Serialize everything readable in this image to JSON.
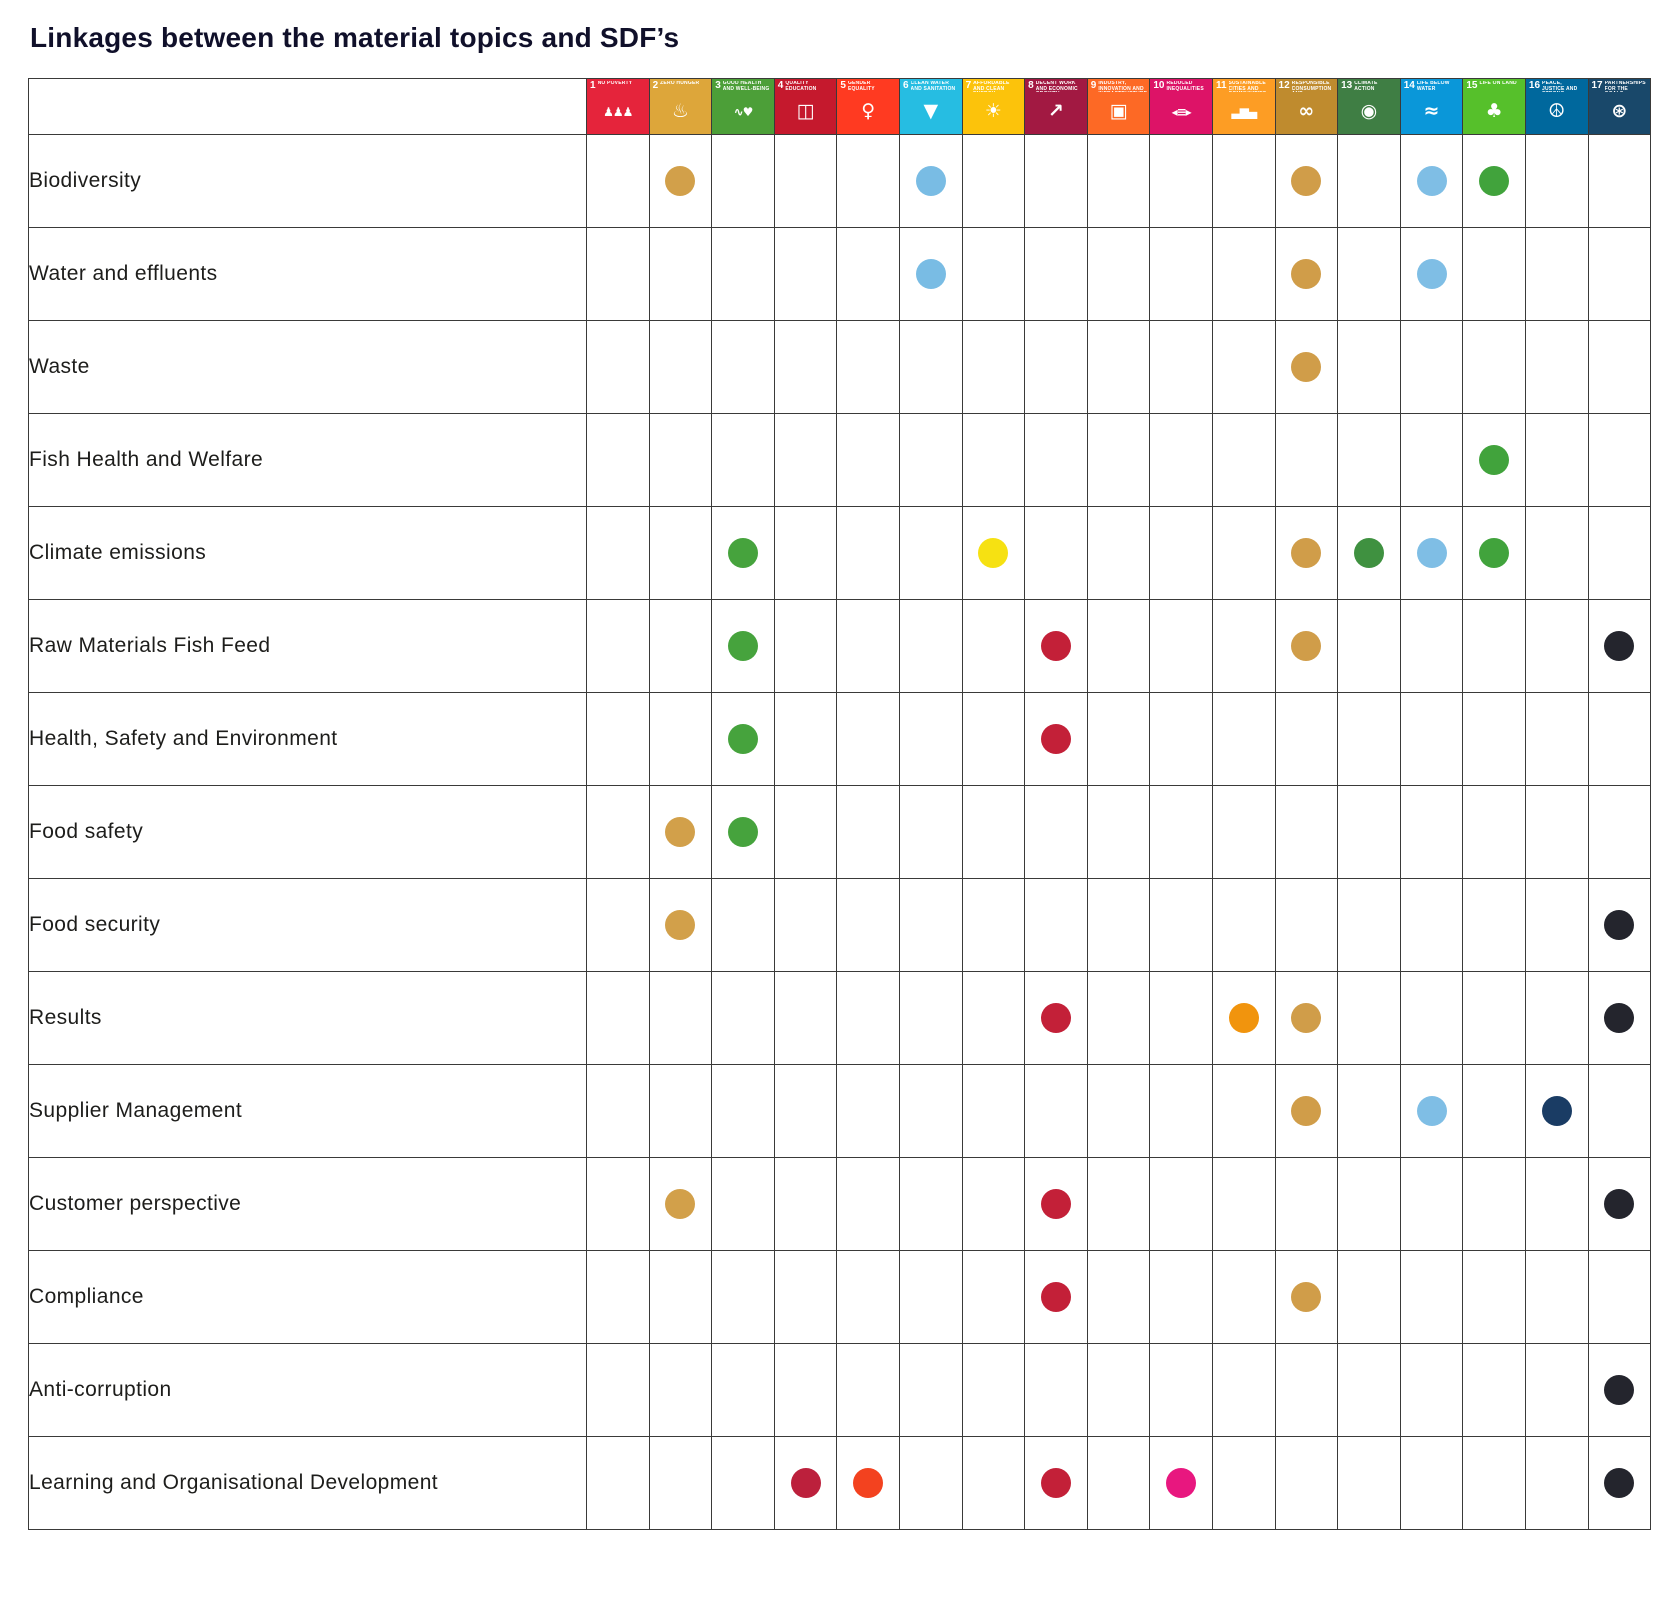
{
  "colors": {
    "background": "#ffffff",
    "border": "#3a3a39",
    "text": "#1d1d1b",
    "title": "#10102a"
  },
  "chart_data": {
    "type": "table",
    "title": "Linkages between the material topics and SDF’s",
    "columns_axis": "UN Sustainable Development Goal icons 1–17",
    "rows_axis": "Material topics",
    "legend": "A colored dot marks a linkage between the material topic (row) and the SDG (column); dot color matches the SDG color",
    "columns": [
      {
        "num": "1",
        "name": "No poverty",
        "icon": "sdg1-people-icon",
        "glyph": "♟♟♟",
        "color": "#E5243B",
        "dot_color": "#E5243B"
      },
      {
        "num": "2",
        "name": "Zero hunger",
        "icon": "sdg2-bowl-icon",
        "glyph": "♨",
        "color": "#DDA63A",
        "dot_color": "#D2A04A"
      },
      {
        "num": "3",
        "name": "Good health and well-being",
        "icon": "sdg3-heartbeat-icon",
        "glyph": "∿♥",
        "color": "#4C9F38",
        "dot_color": "#46A33D"
      },
      {
        "num": "4",
        "name": "Quality education",
        "icon": "sdg4-book-icon",
        "glyph": "◫",
        "color": "#C5192D",
        "dot_color": "#BC203C"
      },
      {
        "num": "5",
        "name": "Gender equality",
        "icon": "sdg5-gender-icon",
        "glyph": "♀",
        "color": "#FF3A21",
        "dot_color": "#F3421F"
      },
      {
        "num": "6",
        "name": "Clean water and sanitation",
        "icon": "sdg6-water-drop-icon",
        "glyph": "▼",
        "color": "#26BDE2",
        "dot_color": "#79BCE4"
      },
      {
        "num": "7",
        "name": "Affordable and clean energy",
        "icon": "sdg7-sun-icon",
        "glyph": "☀",
        "color": "#FCC30B",
        "dot_color": "#F6E112"
      },
      {
        "num": "8",
        "name": "Decent work and economic growth",
        "icon": "sdg8-growth-icon",
        "glyph": "↗",
        "color": "#A21942",
        "dot_color": "#C32038"
      },
      {
        "num": "9",
        "name": "Industry, innovation and infrastructure",
        "icon": "sdg9-cubes-icon",
        "glyph": "▣",
        "color": "#FD6925",
        "dot_color": "#FD6925"
      },
      {
        "num": "10",
        "name": "Reduced inequalities",
        "icon": "sdg10-equality-icon",
        "glyph": "◂≡▸",
        "color": "#DD1367",
        "dot_color": "#E8177F"
      },
      {
        "num": "11",
        "name": "Sustainable cities and communities",
        "icon": "sdg11-city-icon",
        "glyph": "▃▆▄",
        "color": "#FD9D24",
        "dot_color": "#F1940D"
      },
      {
        "num": "12",
        "name": "Responsible consumption and production",
        "icon": "sdg12-infinity-icon",
        "glyph": "∞",
        "color": "#BF8B2E",
        "dot_color": "#D09D49"
      },
      {
        "num": "13",
        "name": "Climate action",
        "icon": "sdg13-eye-icon",
        "glyph": "◉",
        "color": "#3F7E44",
        "dot_color": "#3F9140"
      },
      {
        "num": "14",
        "name": "Life below water",
        "icon": "sdg14-fish-icon",
        "glyph": "≈",
        "color": "#0A97D9",
        "dot_color": "#7FBEE5"
      },
      {
        "num": "15",
        "name": "Life on land",
        "icon": "sdg15-tree-icon",
        "glyph": "♣",
        "color": "#56C02B",
        "dot_color": "#41A33C"
      },
      {
        "num": "16",
        "name": "Peace, justice and strong institutions",
        "icon": "sdg16-dove-icon",
        "glyph": "☮",
        "color": "#00689D",
        "dot_color": "#1A3C64"
      },
      {
        "num": "17",
        "name": "Partnerships for the goals",
        "icon": "sdg17-partnership-icon",
        "glyph": "⊛",
        "color": "#19486A",
        "dot_color": "#24252D"
      }
    ],
    "rows": [
      {
        "label": "Biodiversity",
        "links": [
          2,
          6,
          12,
          14,
          15
        ]
      },
      {
        "label": "Water and effluents",
        "links": [
          6,
          12,
          14
        ]
      },
      {
        "label": "Waste",
        "links": [
          12
        ]
      },
      {
        "label": "Fish Health and Welfare",
        "links": [
          15
        ]
      },
      {
        "label": "Climate emissions",
        "links": [
          3,
          7,
          12,
          13,
          14,
          15
        ]
      },
      {
        "label": "Raw Materials Fish Feed",
        "links": [
          3,
          8,
          12,
          17
        ]
      },
      {
        "label": "Health, Safety and Environment",
        "links": [
          3,
          8
        ]
      },
      {
        "label": "Food safety",
        "links": [
          2,
          3
        ]
      },
      {
        "label": "Food security",
        "links": [
          2,
          17
        ]
      },
      {
        "label": "Results",
        "links": [
          8,
          11,
          12,
          17
        ]
      },
      {
        "label": "Supplier Management",
        "links": [
          12,
          14,
          16
        ]
      },
      {
        "label": "Customer perspective",
        "links": [
          2,
          8,
          17
        ]
      },
      {
        "label": "Compliance",
        "links": [
          8,
          12
        ]
      },
      {
        "label": "Anti-corruption",
        "links": [
          17
        ]
      },
      {
        "label": "Learning and Organisational Development",
        "links": [
          4,
          5,
          8,
          10,
          17
        ]
      }
    ]
  }
}
